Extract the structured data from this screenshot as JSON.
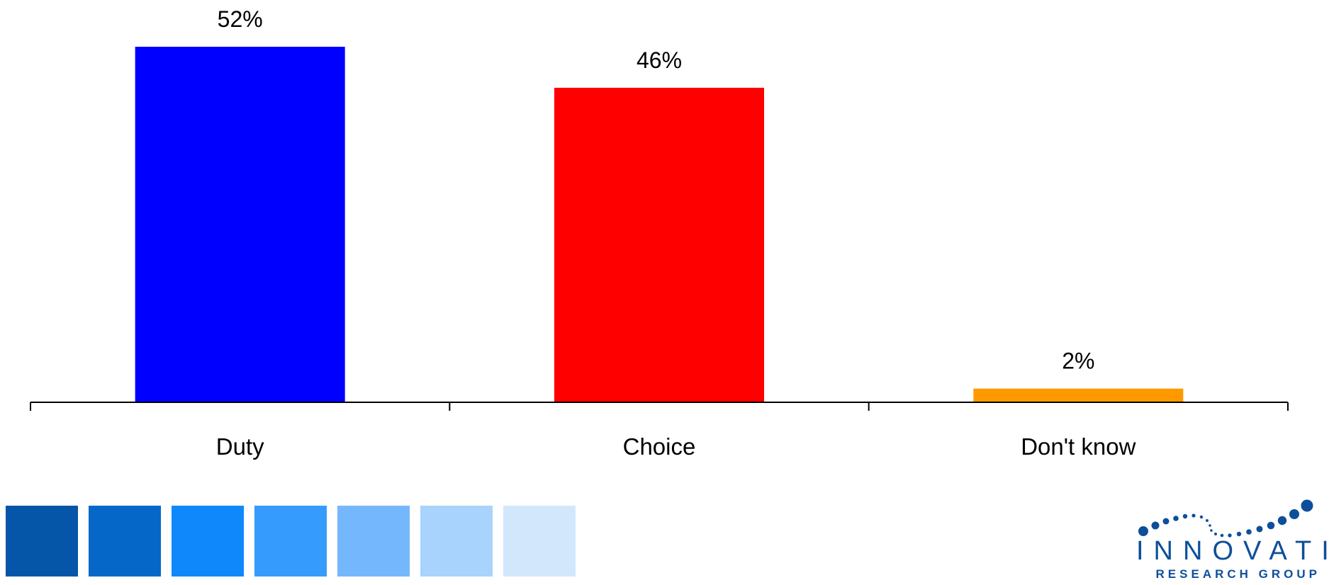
{
  "chart_data": {
    "type": "bar",
    "categories": [
      "Duty",
      "Choice",
      "Don't know"
    ],
    "values": [
      52,
      46,
      2
    ],
    "value_labels": [
      "52%",
      "46%",
      "2%"
    ],
    "colors": [
      "#0000ff",
      "#ff0000",
      "#ff9900"
    ],
    "title": "",
    "xlabel": "",
    "ylabel": "",
    "ylim": [
      0,
      52
    ],
    "grid": false,
    "legend": "none"
  },
  "footer": {
    "swatch_colors": [
      "#0556a8",
      "#0568c8",
      "#0f88fc",
      "#359bfc",
      "#75b7fc",
      "#a8d3fc",
      "#d3e7fc"
    ]
  },
  "logo": {
    "word": "INNOVATIVE",
    "subtitle": "RESEARCH GROUP",
    "color": "#0d4f9a"
  }
}
